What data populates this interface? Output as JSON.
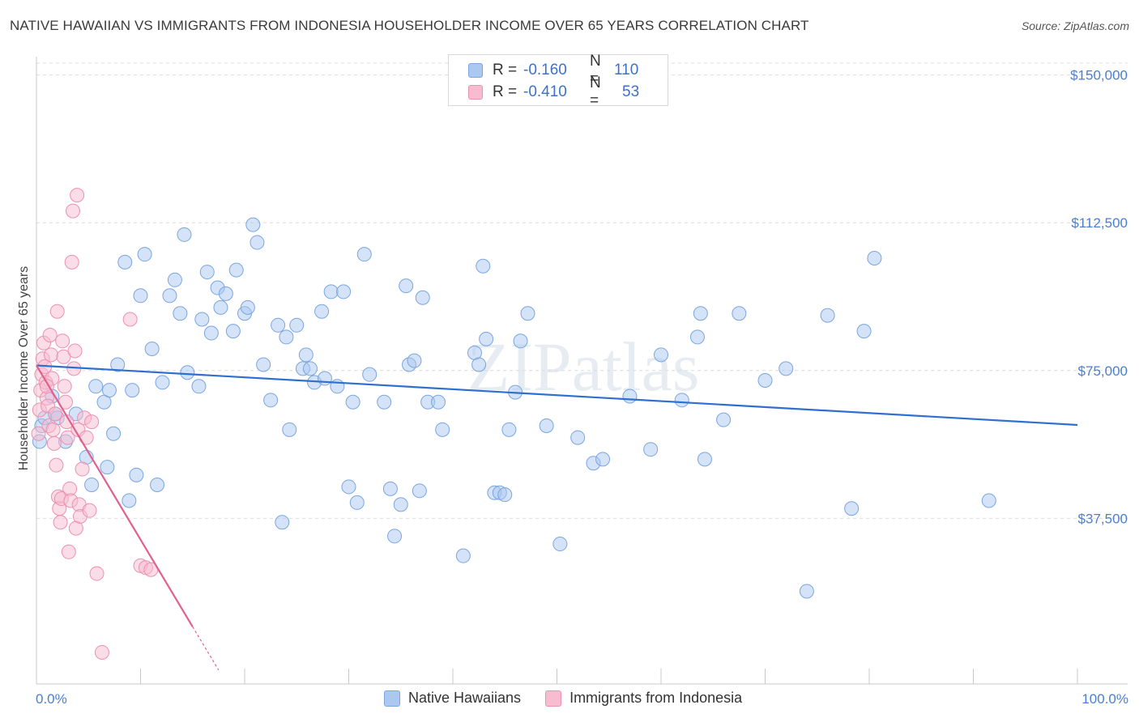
{
  "title": "NATIVE HAWAIIAN VS IMMIGRANTS FROM INDONESIA HOUSEHOLDER INCOME OVER 65 YEARS CORRELATION CHART",
  "source": "Source: ZipAtlas.com",
  "watermark": "ZIPatlas",
  "legend_top": [
    {
      "r_label": "R =",
      "r_value": "-0.160",
      "n_label": "N =",
      "n_value": "110",
      "color": "#aac8f0",
      "border": "#7aa6e0"
    },
    {
      "r_label": "R =",
      "r_value": "-0.410",
      "n_label": "N =",
      "n_value": "53",
      "color": "#f7bcd0",
      "border": "#ee90b0"
    }
  ],
  "legend_bottom": [
    {
      "label": "Native Hawaiians",
      "color": "#aac8f0",
      "border": "#7aa6e0"
    },
    {
      "label": "Immigrants from Indonesia",
      "color": "#f7bcd0",
      "border": "#ee90b0"
    }
  ],
  "chart_data": {
    "type": "scatter",
    "title": "NATIVE HAWAIIAN VS IMMIGRANTS FROM INDONESIA HOUSEHOLDER INCOME OVER 65 YEARS CORRELATION CHART",
    "xlabel": "",
    "ylabel": "Householder Income Over 65 years",
    "xlim": [
      0,
      100
    ],
    "ylim": [
      0,
      153000
    ],
    "x_tick_labels": [
      "0.0%",
      "100.0%"
    ],
    "y_ticks": [
      37500,
      75000,
      112500,
      150000
    ],
    "y_tick_labels": [
      "$37,500",
      "$75,000",
      "$112,500",
      "$150,000"
    ],
    "series": [
      {
        "name": "Native Hawaiians",
        "color": "#aac8f0",
        "stroke": "#7aa6e0",
        "trend": {
          "x": [
            0,
            100
          ],
          "y": [
            76300,
            61200
          ],
          "color": "#2f6fd0"
        },
        "points": [
          [
            0.3,
            57000
          ],
          [
            1.5,
            68500
          ],
          [
            1.8,
            64000
          ],
          [
            2.0,
            63000
          ],
          [
            2.8,
            57000
          ],
          [
            3.8,
            64000
          ],
          [
            4.8,
            53000
          ],
          [
            5.3,
            46000
          ],
          [
            5.7,
            71000
          ],
          [
            6.5,
            67000
          ],
          [
            6.8,
            50500
          ],
          [
            7.0,
            70000
          ],
          [
            7.4,
            59000
          ],
          [
            7.8,
            76500
          ],
          [
            8.5,
            102500
          ],
          [
            8.9,
            42000
          ],
          [
            9.2,
            70000
          ],
          [
            9.6,
            48500
          ],
          [
            10.0,
            94000
          ],
          [
            10.4,
            104500
          ],
          [
            11.1,
            80500
          ],
          [
            11.6,
            46000
          ],
          [
            12.1,
            72000
          ],
          [
            12.8,
            94000
          ],
          [
            13.3,
            98000
          ],
          [
            13.8,
            89500
          ],
          [
            14.2,
            109500
          ],
          [
            14.5,
            74500
          ],
          [
            15.6,
            71000
          ],
          [
            15.9,
            88000
          ],
          [
            16.4,
            100000
          ],
          [
            16.8,
            84500
          ],
          [
            17.4,
            96000
          ],
          [
            17.7,
            91000
          ],
          [
            18.2,
            94500
          ],
          [
            18.9,
            85000
          ],
          [
            19.2,
            100500
          ],
          [
            20.0,
            89500
          ],
          [
            20.3,
            91000
          ],
          [
            20.8,
            112000
          ],
          [
            21.2,
            107500
          ],
          [
            21.8,
            76500
          ],
          [
            22.5,
            67500
          ],
          [
            23.2,
            86500
          ],
          [
            23.6,
            36500
          ],
          [
            24.0,
            83500
          ],
          [
            24.3,
            60000
          ],
          [
            25.0,
            86500
          ],
          [
            25.6,
            75500
          ],
          [
            25.9,
            79000
          ],
          [
            26.3,
            75500
          ],
          [
            26.7,
            72000
          ],
          [
            27.4,
            90000
          ],
          [
            27.7,
            73000
          ],
          [
            28.3,
            95000
          ],
          [
            28.9,
            71000
          ],
          [
            29.5,
            95000
          ],
          [
            30.0,
            45500
          ],
          [
            30.4,
            67000
          ],
          [
            30.8,
            41500
          ],
          [
            31.5,
            104500
          ],
          [
            32.0,
            74000
          ],
          [
            33.4,
            67000
          ],
          [
            34.0,
            45000
          ],
          [
            34.4,
            33000
          ],
          [
            35.0,
            41000
          ],
          [
            35.5,
            96500
          ],
          [
            35.8,
            76500
          ],
          [
            36.3,
            77500
          ],
          [
            36.8,
            44500
          ],
          [
            37.1,
            93500
          ],
          [
            37.6,
            67000
          ],
          [
            38.6,
            67000
          ],
          [
            39.0,
            60000
          ],
          [
            41.0,
            28000
          ],
          [
            42.1,
            79500
          ],
          [
            42.5,
            76500
          ],
          [
            42.9,
            101500
          ],
          [
            43.2,
            83000
          ],
          [
            44.0,
            44000
          ],
          [
            44.5,
            44000
          ],
          [
            45.0,
            43500
          ],
          [
            45.4,
            60000
          ],
          [
            46.0,
            69500
          ],
          [
            46.5,
            82500
          ],
          [
            47.2,
            89500
          ],
          [
            49.0,
            61000
          ],
          [
            50.3,
            31000
          ],
          [
            52.0,
            58000
          ],
          [
            53.5,
            51500
          ],
          [
            54.4,
            52500
          ],
          [
            57.0,
            68500
          ],
          [
            59.0,
            55000
          ],
          [
            60.0,
            79000
          ],
          [
            62.0,
            67500
          ],
          [
            63.5,
            83500
          ],
          [
            63.8,
            89500
          ],
          [
            64.2,
            52500
          ],
          [
            66.0,
            62500
          ],
          [
            67.5,
            89500
          ],
          [
            70.0,
            72500
          ],
          [
            72.0,
            75500
          ],
          [
            74.0,
            19000
          ],
          [
            76.0,
            89000
          ],
          [
            78.3,
            40000
          ],
          [
            79.5,
            85000
          ],
          [
            80.5,
            103500
          ],
          [
            91.5,
            42000
          ],
          [
            0.5,
            61000
          ],
          [
            0.8,
            63000
          ]
        ]
      },
      {
        "name": "Immigrants from Indonesia",
        "color": "#f7bcd0",
        "stroke": "#ee90b0",
        "trend": {
          "x": [
            0,
            15
          ],
          "y": [
            76300,
            10000
          ],
          "color": "#e06090",
          "dash_x": [
            15,
            17.5
          ],
          "dash_y": [
            10000,
            -1000
          ]
        },
        "points": [
          [
            0.2,
            59000
          ],
          [
            0.3,
            65000
          ],
          [
            0.4,
            70000
          ],
          [
            0.5,
            74000
          ],
          [
            0.6,
            78000
          ],
          [
            0.7,
            82000
          ],
          [
            0.8,
            76000
          ],
          [
            0.9,
            72000
          ],
          [
            1.0,
            68000
          ],
          [
            1.1,
            66000
          ],
          [
            1.2,
            61000
          ],
          [
            1.3,
            84000
          ],
          [
            1.4,
            79000
          ],
          [
            1.5,
            73000
          ],
          [
            1.6,
            60000
          ],
          [
            1.7,
            56500
          ],
          [
            1.8,
            64000
          ],
          [
            1.9,
            51000
          ],
          [
            2.0,
            90000
          ],
          [
            2.1,
            43000
          ],
          [
            2.2,
            40000
          ],
          [
            2.3,
            36500
          ],
          [
            2.4,
            42500
          ],
          [
            2.5,
            82500
          ],
          [
            2.6,
            78500
          ],
          [
            2.7,
            71000
          ],
          [
            2.8,
            67000
          ],
          [
            2.9,
            62000
          ],
          [
            3.0,
            58000
          ],
          [
            3.1,
            29000
          ],
          [
            3.2,
            45000
          ],
          [
            3.3,
            42000
          ],
          [
            3.4,
            102500
          ],
          [
            3.5,
            115500
          ],
          [
            3.6,
            75500
          ],
          [
            3.7,
            80000
          ],
          [
            3.8,
            35000
          ],
          [
            3.9,
            119500
          ],
          [
            4.0,
            60000
          ],
          [
            4.1,
            41000
          ],
          [
            4.2,
            38000
          ],
          [
            4.4,
            50000
          ],
          [
            4.6,
            63000
          ],
          [
            4.8,
            58000
          ],
          [
            5.1,
            39500
          ],
          [
            5.3,
            62000
          ],
          [
            5.8,
            23500
          ],
          [
            6.3,
            3500
          ],
          [
            9.0,
            88000
          ],
          [
            10.0,
            25500
          ],
          [
            10.5,
            25000
          ],
          [
            11.0,
            24500
          ],
          [
            1.0,
            71000
          ]
        ]
      }
    ]
  }
}
